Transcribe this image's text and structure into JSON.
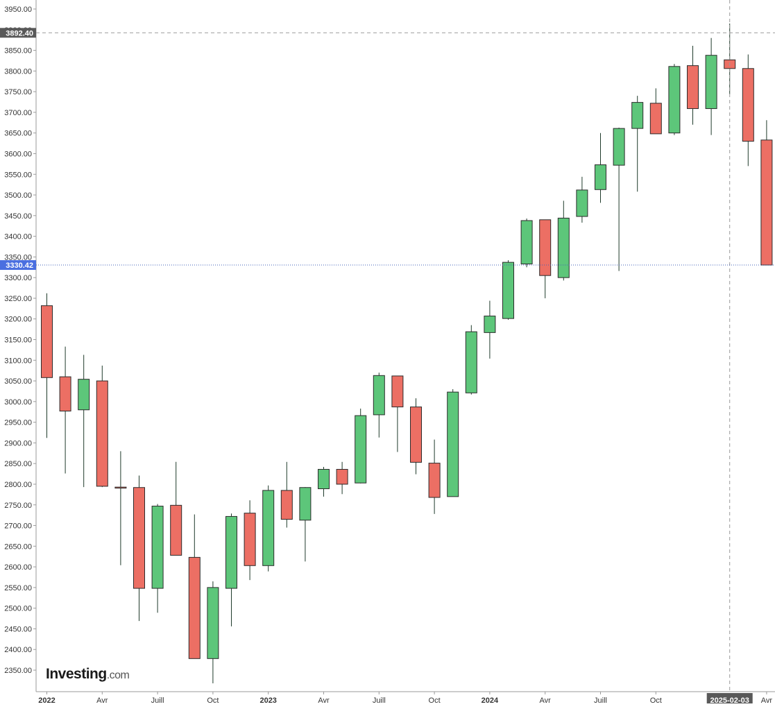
{
  "chart_data": {
    "type": "candlestick",
    "title": "",
    "xlabel": "",
    "ylabel": "",
    "ylim": [
      2300,
      3970
    ],
    "y_ticks": [
      2350,
      2400,
      2450,
      2500,
      2550,
      2600,
      2650,
      2700,
      2750,
      2800,
      2850,
      2900,
      2950,
      3000,
      3050,
      3100,
      3150,
      3200,
      3250,
      3300,
      3350,
      3400,
      3450,
      3500,
      3550,
      3600,
      3650,
      3700,
      3750,
      3800,
      3850,
      3900,
      3950
    ],
    "y_tick_labels": [
      "2350.00",
      "2400.00",
      "2450.00",
      "2500.00",
      "2550.00",
      "2600.00",
      "2650.00",
      "2700.00",
      "2750.00",
      "2800.00",
      "2850.00",
      "2900.00",
      "2950.00",
      "3000.00",
      "3050.00",
      "3100.00",
      "3150.00",
      "3200.00",
      "3250.00",
      "3300.00",
      "3350.00",
      "3400.00",
      "3450.00",
      "3500.00",
      "3550.00",
      "3600.00",
      "3650.00",
      "3700.00",
      "3750.00",
      "3800.00",
      "3850.00",
      "3900.00",
      "3950.00"
    ],
    "x_tick_labels": [
      {
        "label": "2022",
        "period": "2022-01"
      },
      {
        "label": "Avr",
        "period": "2022-04"
      },
      {
        "label": "Juill",
        "period": "2022-07"
      },
      {
        "label": "Oct",
        "period": "2022-10"
      },
      {
        "label": "2023",
        "period": "2023-01"
      },
      {
        "label": "Avr",
        "period": "2023-04"
      },
      {
        "label": "Juill",
        "period": "2023-07"
      },
      {
        "label": "Oct",
        "period": "2023-10"
      },
      {
        "label": "2024",
        "period": "2024-01"
      },
      {
        "label": "Avr",
        "period": "2024-04"
      },
      {
        "label": "Juill",
        "period": "2024-07"
      },
      {
        "label": "Oct",
        "period": "2024-10"
      },
      {
        "label": "Avr",
        "period": "2025-04"
      }
    ],
    "candles": [
      {
        "period": "2022-01",
        "open": 3232,
        "high": 3262,
        "low": 2912,
        "close": 3058
      },
      {
        "period": "2022-02",
        "open": 3060,
        "high": 3133,
        "low": 2826,
        "close": 2977
      },
      {
        "period": "2022-03",
        "open": 2980,
        "high": 3113,
        "low": 2793,
        "close": 3054
      },
      {
        "period": "2022-04",
        "open": 3050,
        "high": 3087,
        "low": 2793,
        "close": 2795
      },
      {
        "period": "2022-05",
        "open": 2793,
        "high": 2880,
        "low": 2604,
        "close": 2791
      },
      {
        "period": "2022-06",
        "open": 2792,
        "high": 2821,
        "low": 2469,
        "close": 2548
      },
      {
        "period": "2022-07",
        "open": 2548,
        "high": 2752,
        "low": 2489,
        "close": 2747
      },
      {
        "period": "2022-08",
        "open": 2749,
        "high": 2854,
        "low": 2628,
        "close": 2628
      },
      {
        "period": "2022-09",
        "open": 2623,
        "high": 2727,
        "low": 2378,
        "close": 2378
      },
      {
        "period": "2022-10",
        "open": 2378,
        "high": 2565,
        "low": 2318,
        "close": 2550
      },
      {
        "period": "2022-11",
        "open": 2548,
        "high": 2729,
        "low": 2456,
        "close": 2722
      },
      {
        "period": "2022-12",
        "open": 2730,
        "high": 2761,
        "low": 2568,
        "close": 2603
      },
      {
        "period": "2023-01",
        "open": 2603,
        "high": 2797,
        "low": 2589,
        "close": 2785
      },
      {
        "period": "2023-02",
        "open": 2785,
        "high": 2854,
        "low": 2695,
        "close": 2715
      },
      {
        "period": "2023-03",
        "open": 2713,
        "high": 2793,
        "low": 2613,
        "close": 2792
      },
      {
        "period": "2023-04",
        "open": 2789,
        "high": 2842,
        "low": 2770,
        "close": 2836
      },
      {
        "period": "2023-05",
        "open": 2836,
        "high": 2854,
        "low": 2776,
        "close": 2800
      },
      {
        "period": "2023-06",
        "open": 2803,
        "high": 2983,
        "low": 2802,
        "close": 2966
      },
      {
        "period": "2023-07",
        "open": 2968,
        "high": 3070,
        "low": 2913,
        "close": 3063
      },
      {
        "period": "2023-08",
        "open": 3062,
        "high": 3062,
        "low": 2878,
        "close": 2987
      },
      {
        "period": "2023-09",
        "open": 2987,
        "high": 3008,
        "low": 2824,
        "close": 2853
      },
      {
        "period": "2023-10",
        "open": 2851,
        "high": 2908,
        "low": 2728,
        "close": 2768
      },
      {
        "period": "2023-11",
        "open": 2770,
        "high": 3030,
        "low": 2770,
        "close": 3023
      },
      {
        "period": "2023-12",
        "open": 3021,
        "high": 3185,
        "low": 3017,
        "close": 3169
      },
      {
        "period": "2024-01",
        "open": 3167,
        "high": 3244,
        "low": 3104,
        "close": 3207
      },
      {
        "period": "2024-02",
        "open": 3201,
        "high": 3342,
        "low": 3198,
        "close": 3337
      },
      {
        "period": "2024-03",
        "open": 3333,
        "high": 3443,
        "low": 3325,
        "close": 3438
      },
      {
        "period": "2024-04",
        "open": 3440,
        "high": 3440,
        "low": 3250,
        "close": 3305
      },
      {
        "period": "2024-05",
        "open": 3300,
        "high": 3486,
        "low": 3293,
        "close": 3444
      },
      {
        "period": "2024-06",
        "open": 3448,
        "high": 3544,
        "low": 3433,
        "close": 3512
      },
      {
        "period": "2024-07",
        "open": 3513,
        "high": 3650,
        "low": 3481,
        "close": 3573
      },
      {
        "period": "2024-08",
        "open": 3572,
        "high": 3663,
        "low": 3316,
        "close": 3661
      },
      {
        "period": "2024-09",
        "open": 3661,
        "high": 3740,
        "low": 3508,
        "close": 3724
      },
      {
        "period": "2024-10",
        "open": 3722,
        "high": 3758,
        "low": 3648,
        "close": 3648
      },
      {
        "period": "2024-11",
        "open": 3650,
        "high": 3817,
        "low": 3645,
        "close": 3811
      },
      {
        "period": "2024-12",
        "open": 3813,
        "high": 3861,
        "low": 3670,
        "close": 3709
      },
      {
        "period": "2025-01",
        "open": 3709,
        "high": 3880,
        "low": 3645,
        "close": 3838
      },
      {
        "period": "2025-02",
        "open": 3827,
        "high": 3915,
        "low": 3744,
        "close": 3806
      },
      {
        "period": "2025-03",
        "open": 3806,
        "high": 3840,
        "low": 3570,
        "close": 3630
      },
      {
        "period": "2025-04",
        "open": 3633,
        "high": 3681,
        "low": 3330.42,
        "close": 3330.42
      }
    ],
    "up_color": "#5dc67a",
    "down_color": "#ec6f64",
    "crosshair": {
      "price": 3892.4,
      "price_label": "3892.40",
      "date_label": "2025-02-03",
      "period": "2025-02"
    },
    "last_price": {
      "price": 3330.42,
      "label": "3330.42",
      "color": "#4a6fe0"
    },
    "grid": false,
    "legend": "none"
  },
  "branding": {
    "name": "Investing",
    "suffix": ".com"
  }
}
